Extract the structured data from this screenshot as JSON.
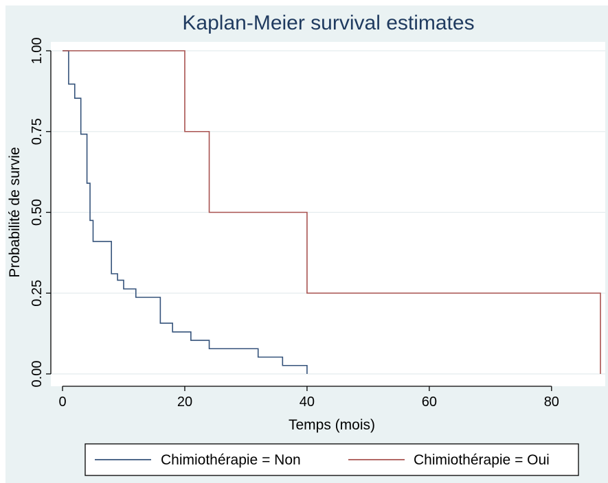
{
  "chart_data": {
    "type": "line",
    "step": true,
    "title": "Kaplan-Meier survival estimates",
    "xlabel": "Temps (mois)",
    "ylabel": "Probabilité de survie",
    "xlim": [
      0,
      88
    ],
    "ylim": [
      0,
      1
    ],
    "xticks": [
      0,
      20,
      40,
      60,
      80
    ],
    "xtick_labels": [
      "0",
      "20",
      "40",
      "60",
      "80"
    ],
    "yticks": [
      0,
      0.25,
      0.5,
      0.75,
      1
    ],
    "ytick_labels": [
      "0.00",
      "0.25",
      "0.50",
      "0.75",
      "1.00"
    ],
    "grid": true,
    "legend_position": "bottom",
    "series": [
      {
        "name": "Chimiothérapie = Non",
        "color": "#34527a",
        "x": [
          0,
          1,
          2,
          3,
          4,
          4.5,
          5,
          5.5,
          8,
          9,
          10,
          12,
          16,
          18,
          21,
          24,
          32,
          36,
          40
        ],
        "y": [
          1.0,
          0.897,
          0.853,
          0.742,
          0.59,
          0.475,
          0.41,
          0.41,
          0.31,
          0.29,
          0.263,
          0.237,
          0.157,
          0.13,
          0.104,
          0.078,
          0.052,
          0.026,
          0.0
        ]
      },
      {
        "name": "Chimiothérapie = Oui",
        "color": "#a8524f",
        "x": [
          0,
          20,
          24,
          40,
          88
        ],
        "y": [
          1.0,
          0.75,
          0.5,
          0.25,
          0.0
        ]
      }
    ]
  }
}
